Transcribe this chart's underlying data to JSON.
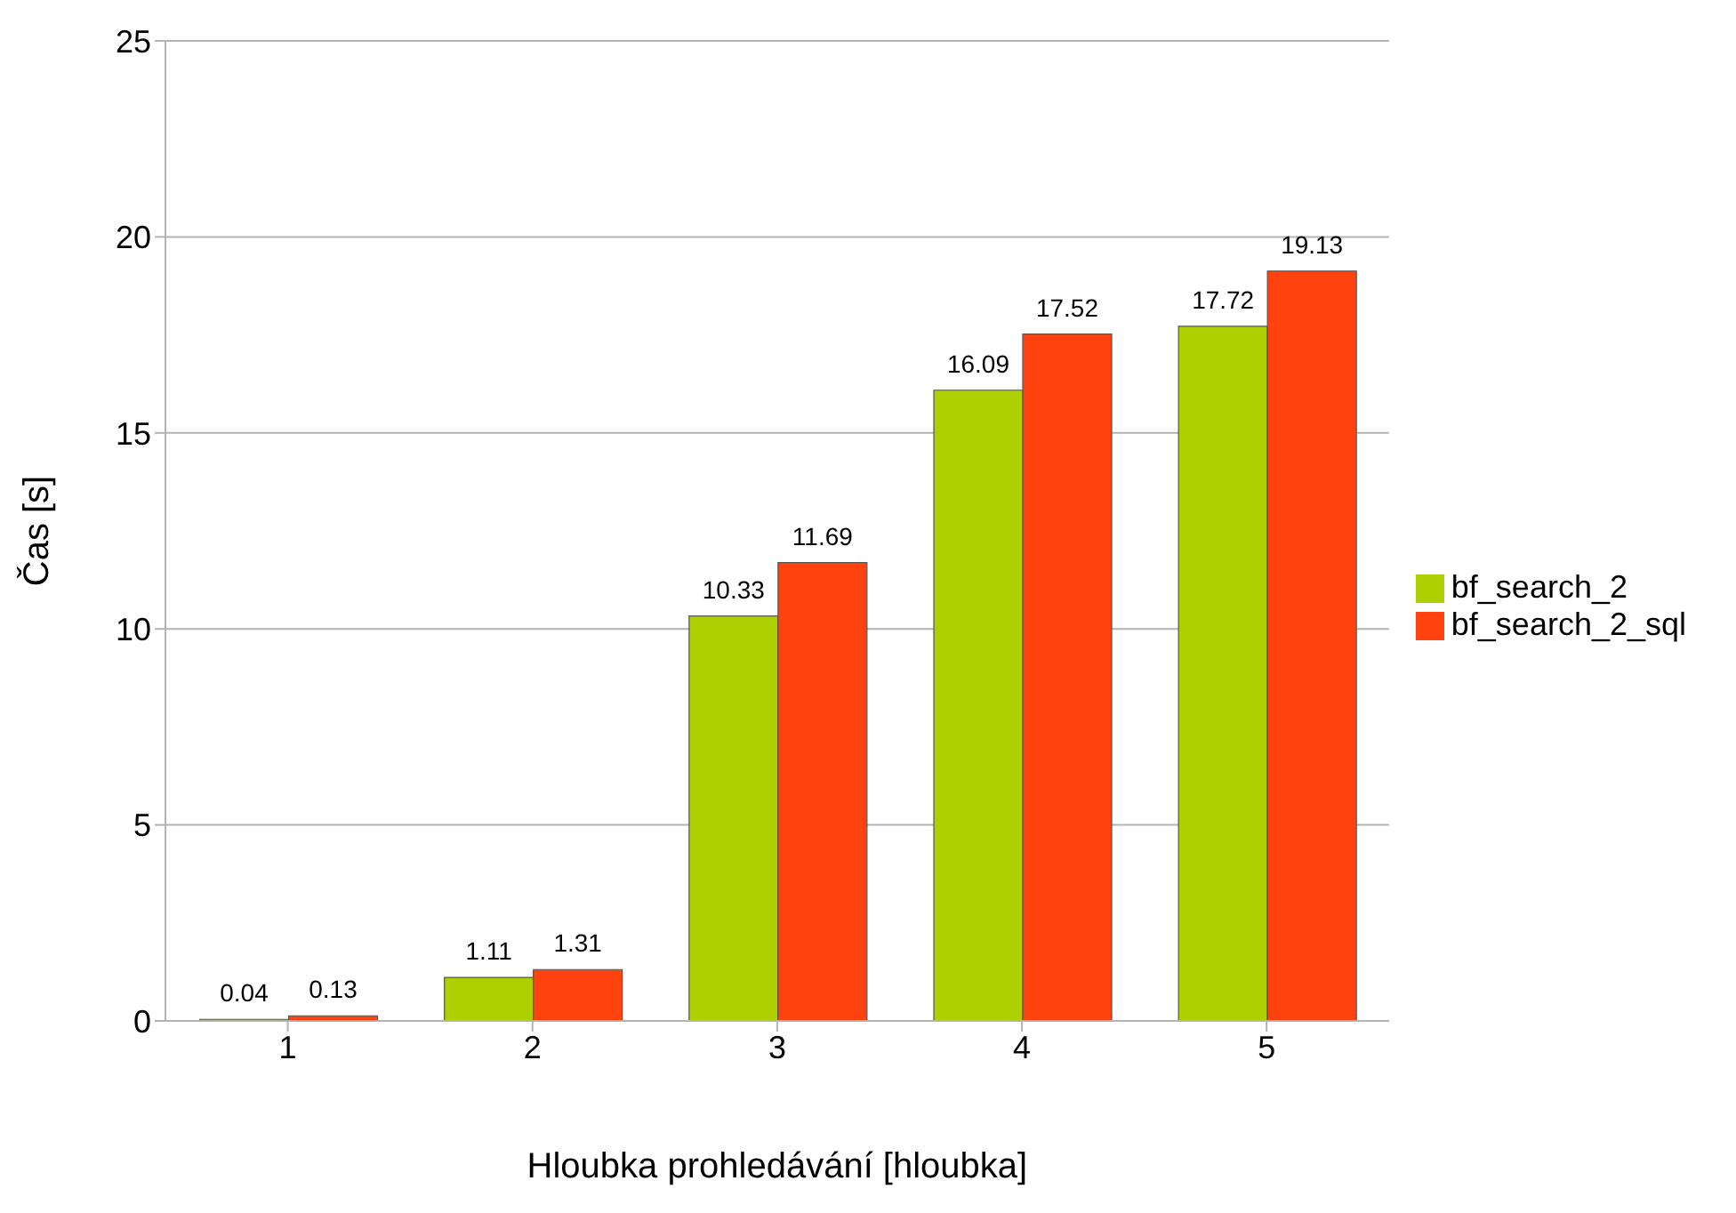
{
  "chart_data": {
    "type": "bar",
    "xlabel": "Hloubka prohledávání [hloubka]",
    "ylabel": "Čas [s]",
    "categories": [
      "1",
      "2",
      "3",
      "4",
      "5"
    ],
    "series": [
      {
        "name": "bf_search_2",
        "color": "#aecf00",
        "values": [
          0.04,
          1.11,
          10.33,
          16.09,
          17.72
        ]
      },
      {
        "name": "bf_search_2_sql",
        "color": "#ff420e",
        "values": [
          0.13,
          1.31,
          11.69,
          17.52,
          19.13
        ]
      }
    ],
    "ylim": [
      0,
      25
    ],
    "yticks": [
      0,
      5,
      10,
      15,
      20,
      25
    ],
    "grid": "y",
    "legend": "right",
    "data_labels": true
  }
}
